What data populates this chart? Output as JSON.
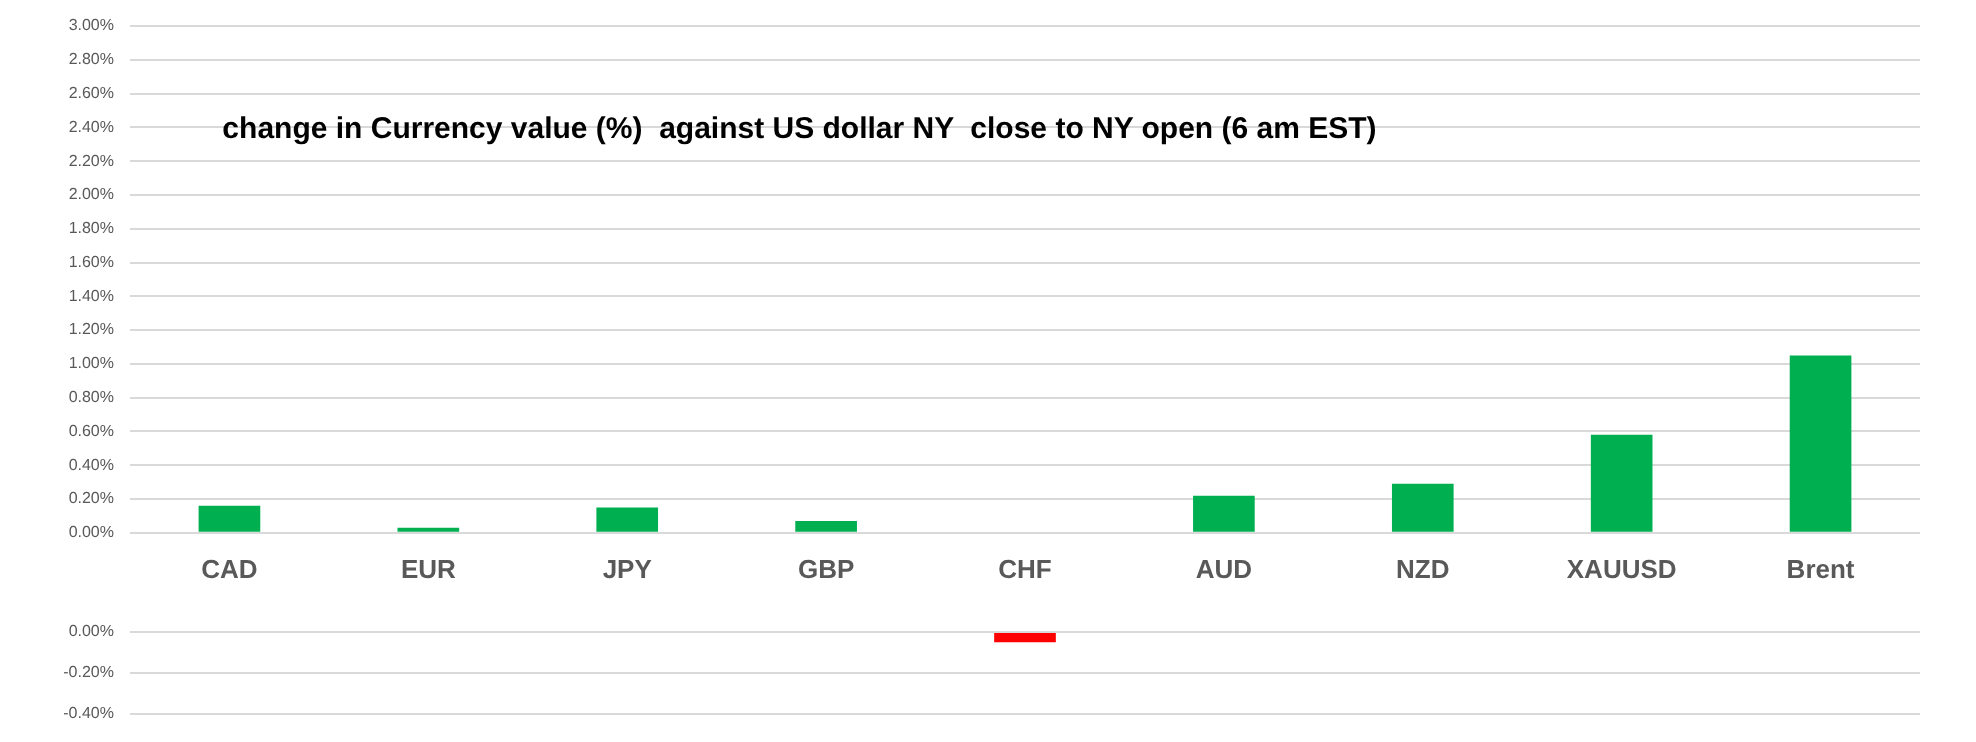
{
  "chart_data": [
    {
      "type": "bar",
      "title": "change in Currency value (%)  against US dollar NY  close to NY open (6 am EST)",
      "categories": [
        "CAD",
        "EUR",
        "JPY",
        "GBP",
        "CHF",
        "AUD",
        "NZD",
        "XAUUSD",
        "Brent"
      ],
      "series": [
        {
          "color": "#00b050",
          "values": [
            0.16,
            0.03,
            0.15,
            0.07,
            null,
            0.22,
            0.29,
            0.58,
            1.05
          ]
        }
      ],
      "ylim": [
        0,
        3
      ],
      "yticks": [
        {
          "value": 0,
          "label": "0.00%"
        },
        {
          "value": 0.2,
          "label": "0.20%"
        },
        {
          "value": 0.4,
          "label": "0.40%"
        },
        {
          "value": 0.6,
          "label": "0.60%"
        },
        {
          "value": 0.8,
          "label": "0.80%"
        },
        {
          "value": 1.0,
          "label": "1.00%"
        },
        {
          "value": 1.2,
          "label": "1.20%"
        },
        {
          "value": 1.4,
          "label": "1.40%"
        },
        {
          "value": 1.6,
          "label": "1.60%"
        },
        {
          "value": 1.8,
          "label": "1.80%"
        },
        {
          "value": 2.0,
          "label": "2.00%"
        },
        {
          "value": 2.2,
          "label": "2.20%"
        },
        {
          "value": 2.4,
          "label": "2.40%"
        },
        {
          "value": 2.6,
          "label": "2.60%"
        },
        {
          "value": 2.8,
          "label": "2.80%"
        },
        {
          "value": 3.0,
          "label": "3.00%"
        }
      ],
      "grid": "y"
    },
    {
      "type": "bar",
      "categories": [
        null,
        null,
        null,
        null,
        null,
        null,
        null,
        null,
        null
      ],
      "series": [
        {
          "color": "#ff0000",
          "values": [
            null,
            null,
            null,
            null,
            -0.05,
            null,
            null,
            null,
            null
          ]
        }
      ],
      "ylim": [
        -0.4,
        0
      ],
      "yticks": [
        {
          "value": 0,
          "label": "0.00%"
        },
        {
          "value": -0.2,
          "label": "-0.20%"
        },
        {
          "value": -0.4,
          "label": "-0.40%"
        }
      ],
      "grid": "y",
      "tick_labels": "y"
    }
  ]
}
